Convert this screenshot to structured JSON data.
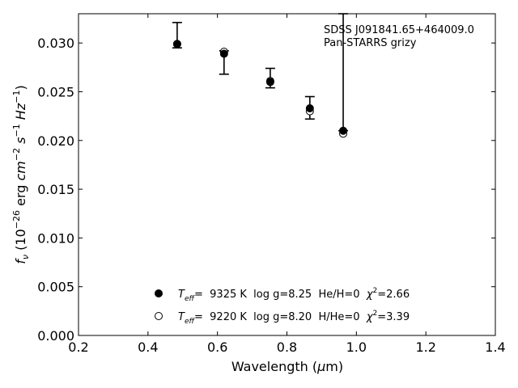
{
  "chart_data": {
    "type": "scatter",
    "annotation_lines": [
      "SDSS J091841.65+464009.0",
      "Pan-STARRS grizy"
    ],
    "xlabel": {
      "base": "Wavelength (",
      "mu": "μ",
      "rest": "m)"
    },
    "ylabel": {
      "f": "f",
      "nu": "ν",
      "open": " (10",
      "exp1": "−26",
      "erg": " erg ",
      "cm": "cm",
      "exp2": "−2",
      "s": " s",
      "exp3": "−1",
      "hz": " Hz",
      "exp4": "−1",
      "close": ")"
    },
    "xlim": [
      0.2,
      1.4
    ],
    "ylim": [
      0.0,
      0.033
    ],
    "x_ticks": [
      0.2,
      0.4,
      0.6,
      0.8,
      1.0,
      1.2,
      1.4
    ],
    "x_tick_labels": [
      "0.2",
      "0.4",
      "0.6",
      "0.8",
      "1.0",
      "1.2",
      "1.4"
    ],
    "y_ticks": [
      0.0,
      0.005,
      0.01,
      0.015,
      0.02,
      0.025,
      0.03
    ],
    "y_tick_labels": [
      "0.000",
      "0.005",
      "0.010",
      "0.015",
      "0.020",
      "0.025",
      "0.030"
    ],
    "grid": false,
    "legend_position": "bottom-center",
    "observed": [
      {
        "x": 0.484,
        "y": 0.03,
        "err_low": 0.0295,
        "err_high": 0.0321
      },
      {
        "x": 0.619,
        "y": 0.0289,
        "err_low": 0.0268,
        "err_high": 0.0292
      },
      {
        "x": 0.752,
        "y": 0.0261,
        "err_low": 0.0254,
        "err_high": 0.0274
      },
      {
        "x": 0.866,
        "y": 0.0232,
        "err_low": 0.0222,
        "err_high": 0.0245
      },
      {
        "x": 0.962,
        "y": 0.021,
        "err_low": 0.021,
        "err_high": 0.033
      }
    ],
    "series": [
      {
        "marker": "filled-circle",
        "label": {
          "t": "T",
          "eff": "eff",
          "rest": "=  9325 K  log g=8.25  He/H=0  ",
          "chi": "χ",
          "two": "2",
          "val": "=2.66"
        },
        "x": [
          0.484,
          0.619,
          0.752,
          0.866,
          0.962
        ],
        "y": [
          0.0299,
          0.0289,
          0.026,
          0.0233,
          0.021
        ]
      },
      {
        "marker": "open-circle",
        "label": {
          "t": "T",
          "eff": "eff",
          "rest": "=  9220 K  log g=8.20  H/He=0  ",
          "chi": "χ",
          "two": "2",
          "val": "=3.39"
        },
        "x": [
          0.484,
          0.619,
          0.752,
          0.866,
          0.962
        ],
        "y": [
          0.0299,
          0.0291,
          0.0261,
          0.023,
          0.0207
        ]
      }
    ]
  }
}
